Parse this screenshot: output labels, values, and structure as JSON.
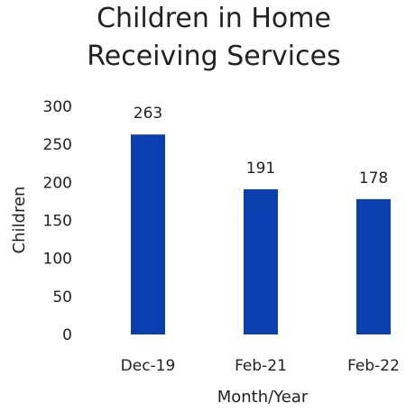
{
  "chart_data": {
    "type": "bar",
    "title_lines": [
      "Children in Home",
      "Receiving Services"
    ],
    "categories": [
      "Dec-19",
      "Feb-21",
      "Feb-22"
    ],
    "values": [
      263,
      191,
      178
    ],
    "data_labels": [
      "263",
      "191",
      "178"
    ],
    "xlabel": "Month/Year",
    "ylabel": "Children",
    "ylim": [
      0,
      300
    ],
    "yticks": [
      0,
      50,
      100,
      150,
      200,
      250,
      300
    ],
    "grid": false,
    "bar_color": "#0a3fb0"
  }
}
